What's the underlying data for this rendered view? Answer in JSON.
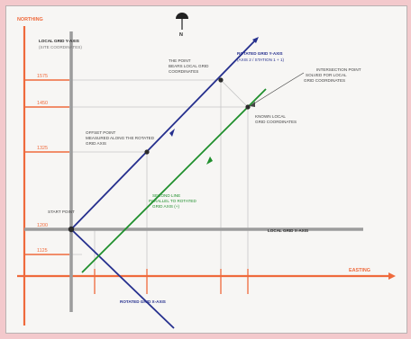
{
  "axes": {
    "northing_label": "NORTHING",
    "easting_label": "EASTING",
    "north_symbol": "N"
  },
  "grids": {
    "local_grid_label_top": "LOCAL GRID Y-AXIS",
    "local_grid_note": "(SITE COORDINATES)",
    "local_grid_x_label": "LOCAL GRID X-AXIS",
    "rotated_grid_y_label": "ROTATED GRID Y-AXIS",
    "rotated_grid_y_sub": "(AXIS 2 / STATION 1 + 1)",
    "rotated_grid_x_label": "ROTATED GRID X-AXIS"
  },
  "annotations": {
    "point_a": [
      "THE POINT",
      "BEARS LOCAL GRID",
      "COORDINATES"
    ],
    "intersection_point": [
      "INTERSECTION POINT",
      "SOLVED FOR LOCAL",
      "GRID COORDINATES"
    ],
    "offset_point": [
      "OFFSET POINT",
      "MEASURED ALONG THE ROTATED",
      "GRID AXIS"
    ],
    "known_grid": [
      "KNOWN LOCAL",
      "GRID COORDINATES"
    ],
    "second_line": [
      "SECOND LINE",
      "PARALLEL TO ROTATED",
      "GRID AXIS (+)"
    ],
    "start_point": "START POINT"
  },
  "northing_ticks": [
    "1575",
    "1450",
    "1325",
    "1200",
    "1125"
  ],
  "colors": {
    "blue": "#26308e",
    "green": "#1f8f2c",
    "orange": "#ef6a3c",
    "gray": "#9c9c9c",
    "black": "#2b2b2b"
  }
}
